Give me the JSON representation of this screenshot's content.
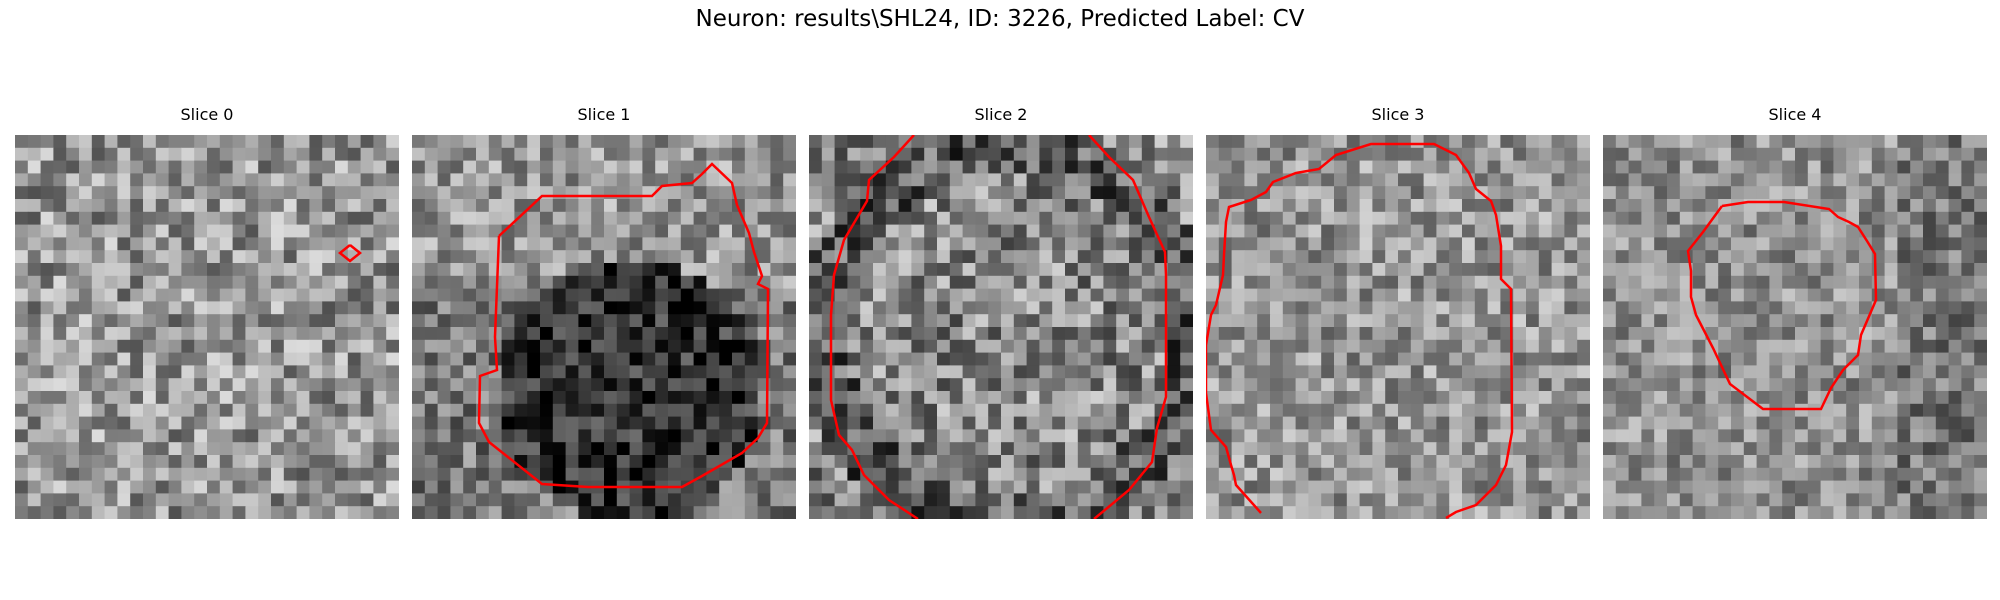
{
  "figure": {
    "title": "Neuron: results\\SHL24, ID: 3226, Predicted Label: CV"
  },
  "panels": [
    {
      "title": "Slice 0",
      "seed": 11,
      "base": 150,
      "contrast": 70
    },
    {
      "title": "Slice 1",
      "seed": 23,
      "base": 120,
      "contrast": 60
    },
    {
      "title": "Slice 2",
      "seed": 37,
      "base": 135,
      "contrast": 75
    },
    {
      "title": "Slice 3",
      "seed": 53,
      "base": 150,
      "contrast": 60
    },
    {
      "title": "Slice 4",
      "seed": 71,
      "base": 145,
      "contrast": 55
    }
  ],
  "colors": {
    "contour": "#ff0000",
    "background": "#ffffff"
  }
}
